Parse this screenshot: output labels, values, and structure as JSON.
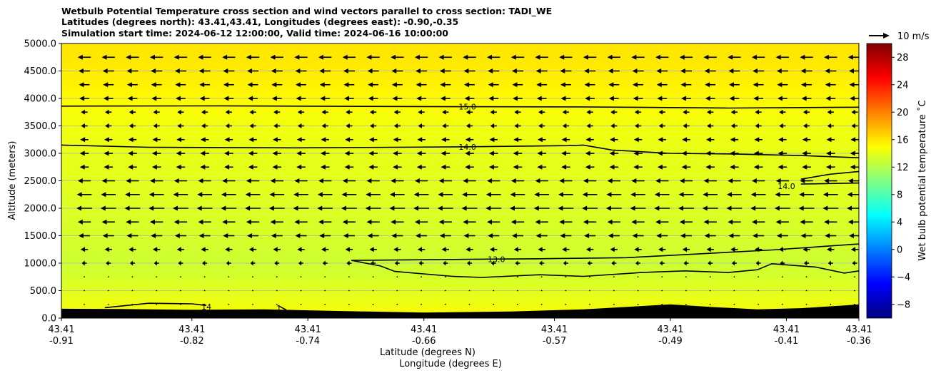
{
  "chart_data": {
    "type": "heatmap",
    "title_lines": [
      "Wetbulb Potential Temperature cross section and wind vectors parallel to cross section: TADI_WE",
      "Latitudes (degrees north): 43.41,43.41, Longitudes (degrees east): -0.90,-0.35",
      "Simulation start time: 2024-06-12 12:00:00, Valid time: 2024-06-16 10:00:00"
    ],
    "ylabel": "Altitude (meters)",
    "xlabel_lat": "Latitude (degrees N)",
    "xlabel_lon": "Longitude (degrees E)",
    "ylim": [
      0,
      5000
    ],
    "yticks": [
      "0.0",
      "500.0",
      "1000.0",
      "1500.0",
      "2000.0",
      "2500.0",
      "3000.0",
      "3500.0",
      "4000.0",
      "4500.0",
      "5000.0"
    ],
    "xlim": [
      -0.91,
      -0.36
    ],
    "xticks": [
      {
        "lon": -0.91,
        "lat_label": "43.41",
        "lon_label": "-0.91"
      },
      {
        "lon": -0.82,
        "lat_label": "43.41",
        "lon_label": "-0.82"
      },
      {
        "lon": -0.74,
        "lat_label": "43.41",
        "lon_label": "-0.74"
      },
      {
        "lon": -0.66,
        "lat_label": "43.41",
        "lon_label": "-0.66"
      },
      {
        "lon": -0.57,
        "lat_label": "43.41",
        "lon_label": "-0.57"
      },
      {
        "lon": -0.49,
        "lat_label": "43.41",
        "lon_label": "-0.49"
      },
      {
        "lon": -0.41,
        "lat_label": "43.41",
        "lon_label": "-0.41"
      },
      {
        "lon": -0.36,
        "lat_label": "43.41",
        "lon_label": "-0.36"
      }
    ],
    "grid": "horizontal",
    "colorbar": {
      "label": "Wet bulb potential temperature $^\\circ$C",
      "display_label": "Wet bulb potential temperature ˚C",
      "range": [
        -10,
        30
      ],
      "ticks": [
        -8,
        -4,
        0,
        4,
        8,
        12,
        16,
        20,
        24,
        28
      ],
      "tick_labels": [
        "−8",
        "−4",
        "0",
        "4",
        "8",
        "12",
        "16",
        "20",
        "24",
        "28"
      ],
      "colormap": "jet"
    },
    "wind_key": {
      "label": "10 m/s",
      "speed": 10
    },
    "field": [
      {
        "alt": 0,
        "temp": 15.2
      },
      {
        "alt": 500,
        "temp": 13.8
      },
      {
        "alt": 1000,
        "temp": 13.0
      },
      {
        "alt": 1500,
        "temp": 13.4
      },
      {
        "alt": 2000,
        "temp": 13.6
      },
      {
        "alt": 2500,
        "temp": 13.9
      },
      {
        "alt": 3000,
        "temp": 14.1
      },
      {
        "alt": 3500,
        "temp": 14.5
      },
      {
        "alt": 4000,
        "temp": 15.2
      },
      {
        "alt": 4500,
        "temp": 15.8
      },
      {
        "alt": 5000,
        "temp": 16.0
      }
    ],
    "contours": [
      {
        "level": "15.0",
        "label_at": [
          -0.63,
          3850
        ],
        "points": [
          [
            -0.91,
            3860
          ],
          [
            -0.8,
            3865
          ],
          [
            -0.7,
            3855
          ],
          [
            -0.63,
            3850
          ],
          [
            -0.55,
            3845
          ],
          [
            -0.45,
            3825
          ],
          [
            -0.36,
            3840
          ]
        ]
      },
      {
        "level": "14.0",
        "label_at": [
          -0.63,
          3120
        ],
        "points": [
          [
            -0.91,
            3150
          ],
          [
            -0.85,
            3110
          ],
          [
            -0.75,
            3100
          ],
          [
            -0.68,
            3110
          ],
          [
            -0.63,
            3120
          ],
          [
            -0.56,
            3140
          ],
          [
            -0.55,
            3150
          ],
          [
            -0.53,
            3060
          ],
          [
            -0.49,
            3000
          ],
          [
            -0.45,
            2990
          ],
          [
            -0.4,
            2960
          ],
          [
            -0.36,
            2920
          ]
        ]
      },
      {
        "level": "14.0",
        "label_at": [
          -0.41,
          2400
        ],
        "points": [
          [
            -0.4,
            2530
          ],
          [
            -0.38,
            2620
          ],
          [
            -0.36,
            2670
          ]
        ]
      },
      {
        "level": "",
        "label_at": null,
        "points": [
          [
            -0.4,
            2440
          ],
          [
            -0.36,
            2460
          ]
        ]
      },
      {
        "level": "13.0",
        "label_at": [
          -0.61,
          1070
        ],
        "points": [
          [
            -0.71,
            1050
          ],
          [
            -0.63,
            1070
          ],
          [
            -0.58,
            1080
          ],
          [
            -0.52,
            1100
          ],
          [
            -0.47,
            1170
          ],
          [
            -0.42,
            1240
          ],
          [
            -0.36,
            1350
          ]
        ]
      },
      {
        "level": "",
        "label_at": null,
        "points": [
          [
            -0.71,
            1050
          ],
          [
            -0.69,
            950
          ],
          [
            -0.68,
            850
          ],
          [
            -0.64,
            760
          ],
          [
            -0.62,
            740
          ],
          [
            -0.58,
            790
          ],
          [
            -0.55,
            760
          ],
          [
            -0.51,
            830
          ],
          [
            -0.48,
            860
          ],
          [
            -0.45,
            830
          ],
          [
            -0.43,
            880
          ],
          [
            -0.42,
            990
          ],
          [
            -0.39,
            930
          ],
          [
            -0.37,
            820
          ],
          [
            -0.36,
            860
          ]
        ]
      },
      {
        "level": "14",
        "label_at": [
          -0.81,
          210
        ],
        "points": [
          [
            -0.88,
            190
          ],
          [
            -0.85,
            270
          ],
          [
            -0.82,
            260
          ],
          [
            -0.81,
            230
          ]
        ]
      },
      {
        "level": "1",
        "label_at": [
          -0.76,
          180
        ],
        "points": [
          [
            -0.76,
            220
          ],
          [
            -0.755,
            150
          ]
        ]
      }
    ],
    "terrain": [
      [
        -0.91,
        170
      ],
      [
        -0.87,
        165
      ],
      [
        -0.82,
        150
      ],
      [
        -0.77,
        160
      ],
      [
        -0.72,
        130
      ],
      [
        -0.66,
        100
      ],
      [
        -0.6,
        120
      ],
      [
        -0.55,
        160
      ],
      [
        -0.51,
        220
      ],
      [
        -0.49,
        250
      ],
      [
        -0.46,
        200
      ],
      [
        -0.43,
        160
      ],
      [
        -0.4,
        180
      ],
      [
        -0.37,
        230
      ],
      [
        -0.36,
        250
      ]
    ],
    "wind_rows": [
      {
        "alt": 4750,
        "u": -8
      },
      {
        "alt": 4500,
        "u": -7
      },
      {
        "alt": 4250,
        "u": -6.5
      },
      {
        "alt": 4000,
        "u": -6
      },
      {
        "alt": 3750,
        "u": -4
      },
      {
        "alt": 3500,
        "u": -4
      },
      {
        "alt": 3250,
        "u": -5
      },
      {
        "alt": 3000,
        "u": -5.5
      },
      {
        "alt": 2750,
        "u": -5.5
      },
      {
        "alt": 2500,
        "u": -8
      },
      {
        "alt": 2250,
        "u": -9
      },
      {
        "alt": 2000,
        "u": -9.5
      },
      {
        "alt": 1750,
        "u": -8
      },
      {
        "alt": 1500,
        "u": -7
      },
      {
        "alt": 1250,
        "u": -4.5
      },
      {
        "alt": 1000,
        "u": -3
      },
      {
        "alt": 750,
        "u": -1.5
      },
      {
        "alt": 500,
        "u": -1
      },
      {
        "alt": 250,
        "u": 1
      }
    ]
  }
}
